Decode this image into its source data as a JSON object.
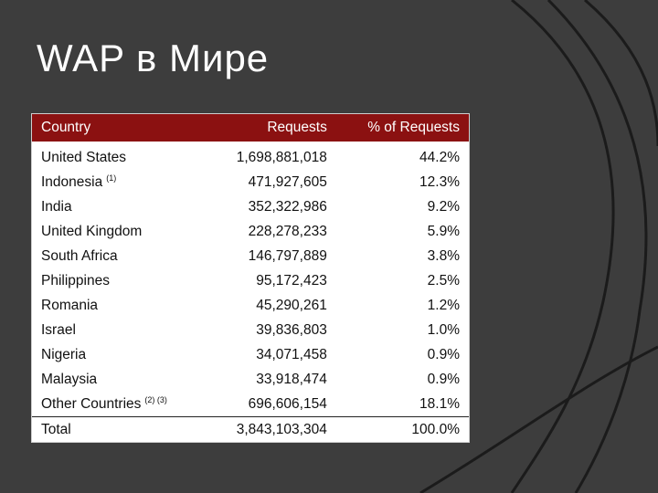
{
  "slide": {
    "title": "WAP в Мире"
  },
  "table": {
    "headers": {
      "country": "Country",
      "requests": "Requests",
      "percent": "% of Requests"
    },
    "rows": [
      {
        "country": "United States",
        "note": "",
        "requests": "1,698,881,018",
        "percent": "44.2%"
      },
      {
        "country": "Indonesia",
        "note": "(1)",
        "requests": "471,927,605",
        "percent": "12.3%"
      },
      {
        "country": "India",
        "note": "",
        "requests": "352,322,986",
        "percent": "9.2%"
      },
      {
        "country": "United Kingdom",
        "note": "",
        "requests": "228,278,233",
        "percent": "5.9%"
      },
      {
        "country": "South Africa",
        "note": "",
        "requests": "146,797,889",
        "percent": "3.8%"
      },
      {
        "country": "Philippines",
        "note": "",
        "requests": "95,172,423",
        "percent": "2.5%"
      },
      {
        "country": "Romania",
        "note": "",
        "requests": "45,290,261",
        "percent": "1.2%"
      },
      {
        "country": "Israel",
        "note": "",
        "requests": "39,836,803",
        "percent": "1.0%"
      },
      {
        "country": "Nigeria",
        "note": "",
        "requests": "34,071,458",
        "percent": "0.9%"
      },
      {
        "country": "Malaysia",
        "note": "",
        "requests": "33,918,474",
        "percent": "0.9%"
      },
      {
        "country": "Other Countries",
        "note": "(2) (3)",
        "requests": "696,606,154",
        "percent": "18.1%"
      }
    ],
    "total": {
      "country": "Total",
      "requests": "3,843,103,304",
      "percent": "100.0%"
    }
  },
  "colors": {
    "background": "#3d3d3d",
    "header": "#8b1111",
    "arcs": "#1a1a1a"
  }
}
